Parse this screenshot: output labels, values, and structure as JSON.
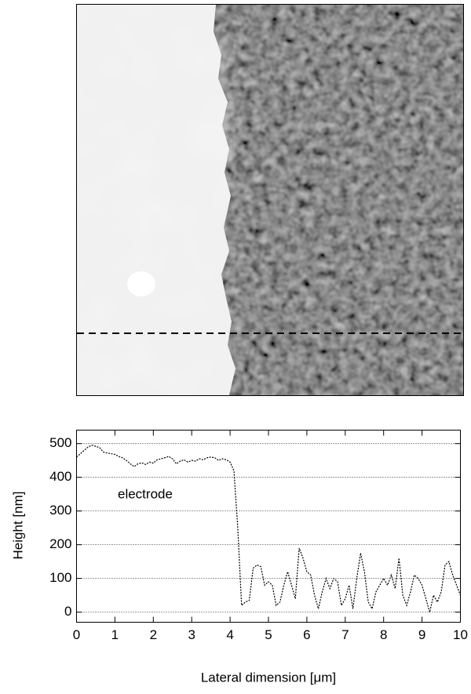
{
  "chart_data": {
    "type": "line",
    "ylabel": "Height [nm]",
    "xlabel": "Lateral dimension [μm]",
    "annotation": "electrode",
    "xlim": [
      0,
      10
    ],
    "xticks": [
      0,
      1,
      2,
      3,
      4,
      5,
      6,
      7,
      8,
      9,
      10
    ],
    "ylim": [
      -30,
      540
    ],
    "yticks": [
      0,
      100,
      200,
      300,
      400,
      500
    ],
    "grid": true,
    "color": "#000000",
    "x": [
      0,
      0.1,
      0.2,
      0.3,
      0.4,
      0.5,
      0.6,
      0.7,
      0.8,
      0.9,
      1,
      1.1,
      1.2,
      1.3,
      1.4,
      1.5,
      1.6,
      1.7,
      1.8,
      1.9,
      2,
      2.1,
      2.2,
      2.3,
      2.4,
      2.5,
      2.6,
      2.7,
      2.8,
      2.9,
      3,
      3.1,
      3.2,
      3.3,
      3.4,
      3.5,
      3.6,
      3.7,
      3.8,
      3.9,
      4,
      4.1,
      4.2,
      4.3,
      4.4,
      4.5,
      4.6,
      4.7,
      4.8,
      4.9,
      5,
      5.1,
      5.2,
      5.3,
      5.4,
      5.5,
      5.6,
      5.7,
      5.8,
      5.9,
      6,
      6.1,
      6.2,
      6.3,
      6.4,
      6.5,
      6.6,
      6.7,
      6.8,
      6.9,
      7,
      7.1,
      7.2,
      7.3,
      7.4,
      7.5,
      7.6,
      7.7,
      7.8,
      7.9,
      8,
      8.1,
      8.2,
      8.3,
      8.4,
      8.5,
      8.6,
      8.7,
      8.8,
      8.9,
      9,
      9.1,
      9.2,
      9.3,
      9.4,
      9.5,
      9.6,
      9.7,
      9.8,
      9.9,
      10
    ],
    "values": [
      460,
      470,
      480,
      490,
      495,
      492,
      488,
      475,
      472,
      470,
      468,
      462,
      458,
      450,
      440,
      432,
      440,
      443,
      438,
      445,
      442,
      452,
      455,
      458,
      462,
      455,
      440,
      448,
      452,
      445,
      450,
      448,
      455,
      452,
      458,
      460,
      458,
      450,
      455,
      452,
      445,
      420,
      250,
      20,
      30,
      35,
      130,
      140,
      135,
      80,
      90,
      80,
      20,
      30,
      80,
      120,
      80,
      40,
      190,
      160,
      120,
      110,
      50,
      10,
      60,
      100,
      70,
      100,
      90,
      20,
      40,
      80,
      10,
      100,
      175,
      120,
      30,
      10,
      60,
      80,
      100,
      80,
      110,
      70,
      160,
      50,
      20,
      60,
      110,
      100,
      80,
      40,
      0,
      50,
      30,
      60,
      140,
      150,
      110,
      80,
      50
    ]
  }
}
